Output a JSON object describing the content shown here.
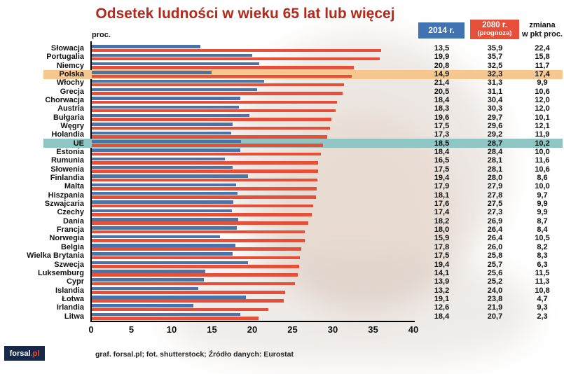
{
  "title": "Odsetek ludności w wieku 65 lat lub więcej",
  "axis_unit": "proc.",
  "table_headers": {
    "col_2014": "2014 r.",
    "col_2080_line1": "2080 r.",
    "col_2080_line2": "(prognoza)",
    "col_change_line1": "zmiana",
    "col_change_line2": "w pkt proc."
  },
  "footer": {
    "credit": "graf. forsal.pl; fot. shutterstock;  Źródło danych:  Eurostat",
    "logo_main": "forsal",
    "logo_suffix": ".pl"
  },
  "colors": {
    "title": "#b32a1c",
    "bar_2014": "#4a74a8",
    "bar_2080": "#e6503a",
    "header_2014_bg": "#4173b3",
    "header_2080_bg": "#e6503a",
    "highlight_polska": "#f6c78f",
    "highlight_ue": "#8fc6c4"
  },
  "chart_data": {
    "type": "bar",
    "orientation": "horizontal",
    "title": "Odsetek ludności w wieku 65 lat lub więcej",
    "xlabel": "proc.",
    "xlim": [
      0,
      40
    ],
    "xticks": [
      0,
      5,
      10,
      15,
      20,
      25,
      30,
      35,
      40
    ],
    "grid": false,
    "legend_position": "top-right-table",
    "series_names": [
      "2014 r.",
      "2080 r. (prognoza)",
      "zmiana w pkt proc."
    ],
    "rows": [
      {
        "country": "Słowacja",
        "v2014": 13.5,
        "v2080": 35.9,
        "change": 22.4
      },
      {
        "country": "Portugalia",
        "v2014": 19.9,
        "v2080": 35.7,
        "change": 15.8
      },
      {
        "country": "Niemcy",
        "v2014": 20.8,
        "v2080": 32.5,
        "change": 11.7
      },
      {
        "country": "Polska",
        "v2014": 14.9,
        "v2080": 32.3,
        "change": 17.4,
        "highlight": "polska"
      },
      {
        "country": "Włochy",
        "v2014": 21.4,
        "v2080": 31.3,
        "change": 9.9
      },
      {
        "country": "Grecja",
        "v2014": 20.5,
        "v2080": 31.1,
        "change": 10.6
      },
      {
        "country": "Chorwacja",
        "v2014": 18.4,
        "v2080": 30.4,
        "change": 12.0
      },
      {
        "country": "Austria",
        "v2014": 18.3,
        "v2080": 30.3,
        "change": 12.0
      },
      {
        "country": "Bułgaria",
        "v2014": 19.6,
        "v2080": 29.7,
        "change": 10.1
      },
      {
        "country": "Węgry",
        "v2014": 17.5,
        "v2080": 29.6,
        "change": 12.1
      },
      {
        "country": "Holandia",
        "v2014": 17.3,
        "v2080": 29.2,
        "change": 11.9
      },
      {
        "country": "UE",
        "v2014": 18.5,
        "v2080": 28.7,
        "change": 10.2,
        "highlight": "ue"
      },
      {
        "country": "Estonia",
        "v2014": 18.4,
        "v2080": 28.4,
        "change": 10.0
      },
      {
        "country": "Rumunia",
        "v2014": 16.5,
        "v2080": 28.1,
        "change": 11.6
      },
      {
        "country": "Słowenia",
        "v2014": 17.5,
        "v2080": 28.1,
        "change": 10.6
      },
      {
        "country": "Finlandia",
        "v2014": 19.4,
        "v2080": 28.0,
        "change": 8.6
      },
      {
        "country": "Malta",
        "v2014": 17.9,
        "v2080": 27.9,
        "change": 10.0
      },
      {
        "country": "Hiszpania",
        "v2014": 18.1,
        "v2080": 27.8,
        "change": 9.7
      },
      {
        "country": "Szwajcaria",
        "v2014": 17.6,
        "v2080": 27.5,
        "change": 9.9
      },
      {
        "country": "Czechy",
        "v2014": 17.4,
        "v2080": 27.3,
        "change": 9.9
      },
      {
        "country": "Dania",
        "v2014": 18.2,
        "v2080": 26.9,
        "change": 8.7
      },
      {
        "country": "Francja",
        "v2014": 18.0,
        "v2080": 26.4,
        "change": 8.4
      },
      {
        "country": "Norwegia",
        "v2014": 15.9,
        "v2080": 26.4,
        "change": 10.5
      },
      {
        "country": "Belgia",
        "v2014": 17.8,
        "v2080": 26.0,
        "change": 8.2
      },
      {
        "country": "Wielka Brytania",
        "v2014": 17.5,
        "v2080": 25.8,
        "change": 8.3
      },
      {
        "country": "Szwecja",
        "v2014": 19.4,
        "v2080": 25.7,
        "change": 6.3
      },
      {
        "country": "Luksemburg",
        "v2014": 14.1,
        "v2080": 25.6,
        "change": 11.5
      },
      {
        "country": "Cypr",
        "v2014": 13.9,
        "v2080": 25.2,
        "change": 11.3
      },
      {
        "country": "Islandia",
        "v2014": 13.2,
        "v2080": 24.0,
        "change": 10.8
      },
      {
        "country": "Łotwa",
        "v2014": 19.1,
        "v2080": 23.8,
        "change": 4.7
      },
      {
        "country": "Irlandia",
        "v2014": 12.6,
        "v2080": 21.9,
        "change": 9.3
      },
      {
        "country": "Litwa",
        "v2014": 18.4,
        "v2080": 20.7,
        "change": 2.3
      }
    ]
  }
}
